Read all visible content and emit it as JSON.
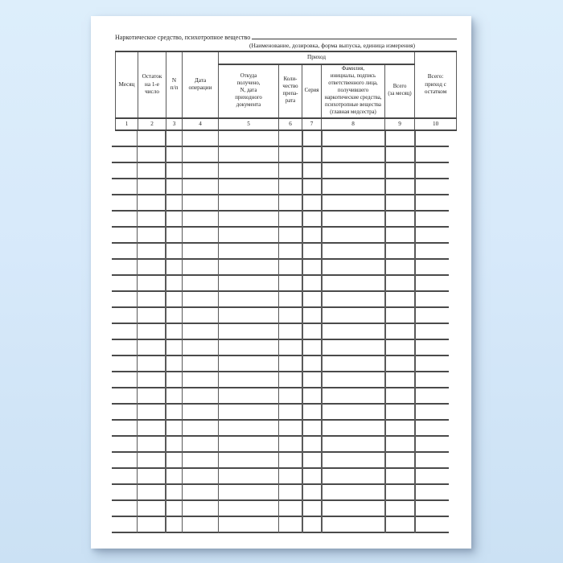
{
  "form": {
    "title_label": "Наркотическое средство, психотропное вещество",
    "subtitle": "(Наименование, дозировка, форма выпуска, единица измерения)"
  },
  "table": {
    "group_header": "Приход",
    "columns": [
      {
        "num": "1",
        "label": "Месяц"
      },
      {
        "num": "2",
        "label": "Остаток\nна 1-е\nчисло"
      },
      {
        "num": "3",
        "label": "N\nп/п"
      },
      {
        "num": "4",
        "label": "Дата\nоперации"
      },
      {
        "num": "5",
        "label": "Откуда\nполучено,\nN, дата\nприходного\nдокумента"
      },
      {
        "num": "6",
        "label": "Коли-\nчество\nпрепа-\nрата"
      },
      {
        "num": "7",
        "label": "Серия"
      },
      {
        "num": "8",
        "label": "Фамилия,\nинициалы, подпись\nответственного лица,\nполучившего\nнаркотические средства,\nпсихотропные вещества\n(главная медсестра)"
      },
      {
        "num": "9",
        "label": "Всего\n(за месяц)"
      },
      {
        "num": "10",
        "label": "Всего:\nприход с\nостатком"
      }
    ],
    "empty_row_count": 25
  },
  "colors": {
    "background_top": "#ddeefb",
    "background_bottom": "#cbe1f4",
    "page": "#ffffff",
    "rule_lines": "#4a4a4a"
  }
}
